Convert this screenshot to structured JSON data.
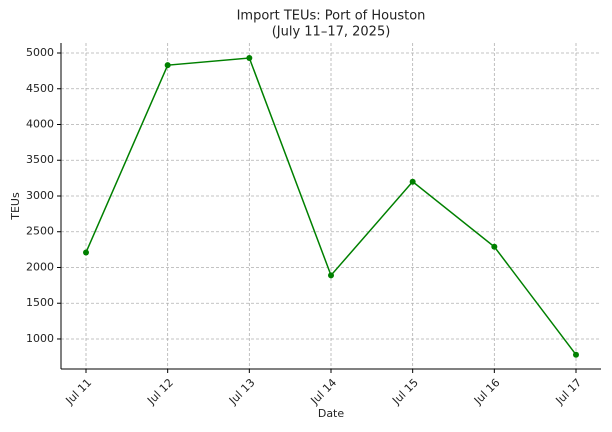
{
  "chart_data": {
    "type": "line",
    "title": "Import TEUs: Port of Houston",
    "subtitle": "(July 11–17, 2025)",
    "x_label": "Date",
    "y_label": "TEUs",
    "categories": [
      "Jul 11",
      "Jul 12",
      "Jul 13",
      "Jul 14",
      "Jul 15",
      "Jul 16",
      "Jul 17"
    ],
    "series": [
      {
        "name": "TEUs",
        "color": "#008000",
        "values": [
          2210,
          4830,
          4930,
          1890,
          3200,
          2290,
          780
        ]
      }
    ],
    "ylim": [
      580,
      5140
    ],
    "yticks": [
      1000,
      1500,
      2000,
      2500,
      3000,
      3500,
      4000,
      4500,
      5000
    ],
    "grid": true
  }
}
